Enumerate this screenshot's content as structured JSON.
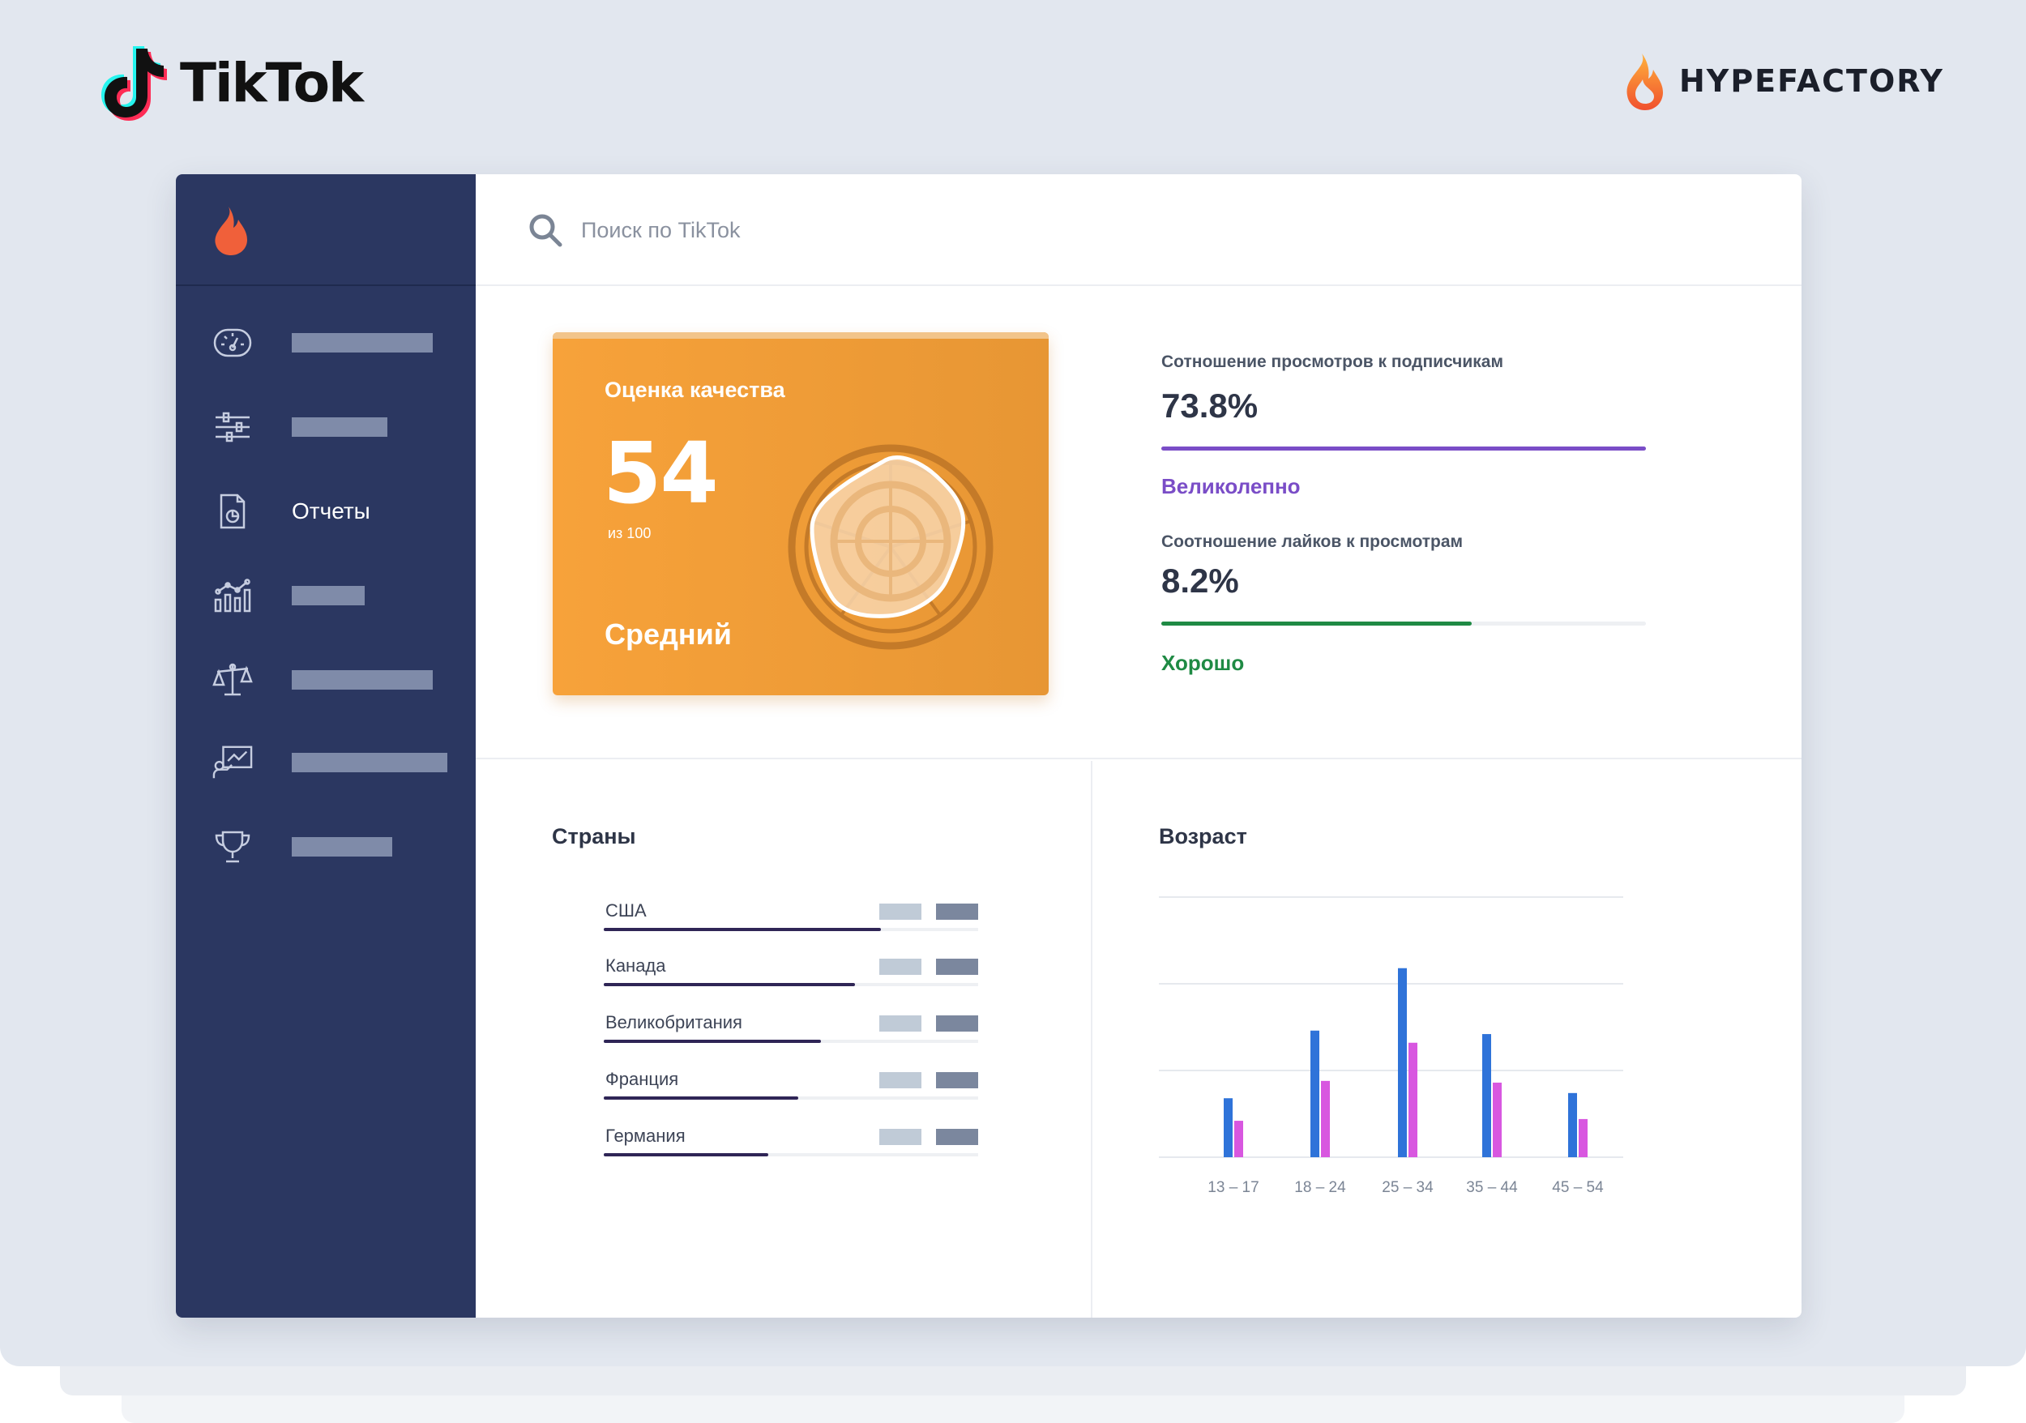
{
  "brands": {
    "left": "TikTok",
    "right": "HYPEFACTORY"
  },
  "colors": {
    "sidebar": "#2b3761",
    "accent_orange": "#f7a23a",
    "purple": "#7a4dc7",
    "green": "#1f8a44",
    "bar_blue": "#2f73d9",
    "bar_pink": "#d857e0"
  },
  "sidebar": {
    "logo_icon": "flame-icon",
    "items": [
      {
        "icon": "dashboard-gauge-icon",
        "label": ""
      },
      {
        "icon": "sliders-icon",
        "label": ""
      },
      {
        "icon": "report-document-icon",
        "label": "Отчеты"
      },
      {
        "icon": "analytics-chart-icon",
        "label": ""
      },
      {
        "icon": "scales-icon",
        "label": ""
      },
      {
        "icon": "presentation-icon",
        "label": ""
      },
      {
        "icon": "trophy-icon",
        "label": ""
      }
    ]
  },
  "search": {
    "placeholder": "Поиск по TikTok"
  },
  "quality": {
    "title": "Оценка качества",
    "score": "54",
    "out_of": "из 100",
    "verdict": "Средний"
  },
  "metrics": [
    {
      "title": "Сотношение просмотров к подписчикам",
      "value": "73.8%",
      "fraction": 1.0,
      "verdict": "Великолепно"
    },
    {
      "title": "Соотношение лайков к просмотрам",
      "value": "8.2%",
      "fraction": 0.64,
      "verdict": "Хорошо"
    }
  ],
  "countries": {
    "title": "Страны",
    "items": [
      {
        "name": "США",
        "fraction": 0.74
      },
      {
        "name": "Канада",
        "fraction": 0.67
      },
      {
        "name": "Великобритания",
        "fraction": 0.58
      },
      {
        "name": "Франция",
        "fraction": 0.52
      },
      {
        "name": "Германия",
        "fraction": 0.44
      }
    ]
  },
  "age": {
    "title": "Возраст",
    "chart_data": {
      "type": "bar",
      "categories": [
        "13 – 17",
        "18 – 24",
        "25 – 34",
        "35 – 44",
        "45 – 54"
      ],
      "series": [
        {
          "values": [
            0.34,
            0.73,
            1.09,
            0.71,
            0.37
          ]
        },
        {
          "values": [
            0.21,
            0.44,
            0.66,
            0.43,
            0.22
          ]
        }
      ],
      "ylim": [
        0,
        1.5
      ],
      "grid": true
    }
  }
}
